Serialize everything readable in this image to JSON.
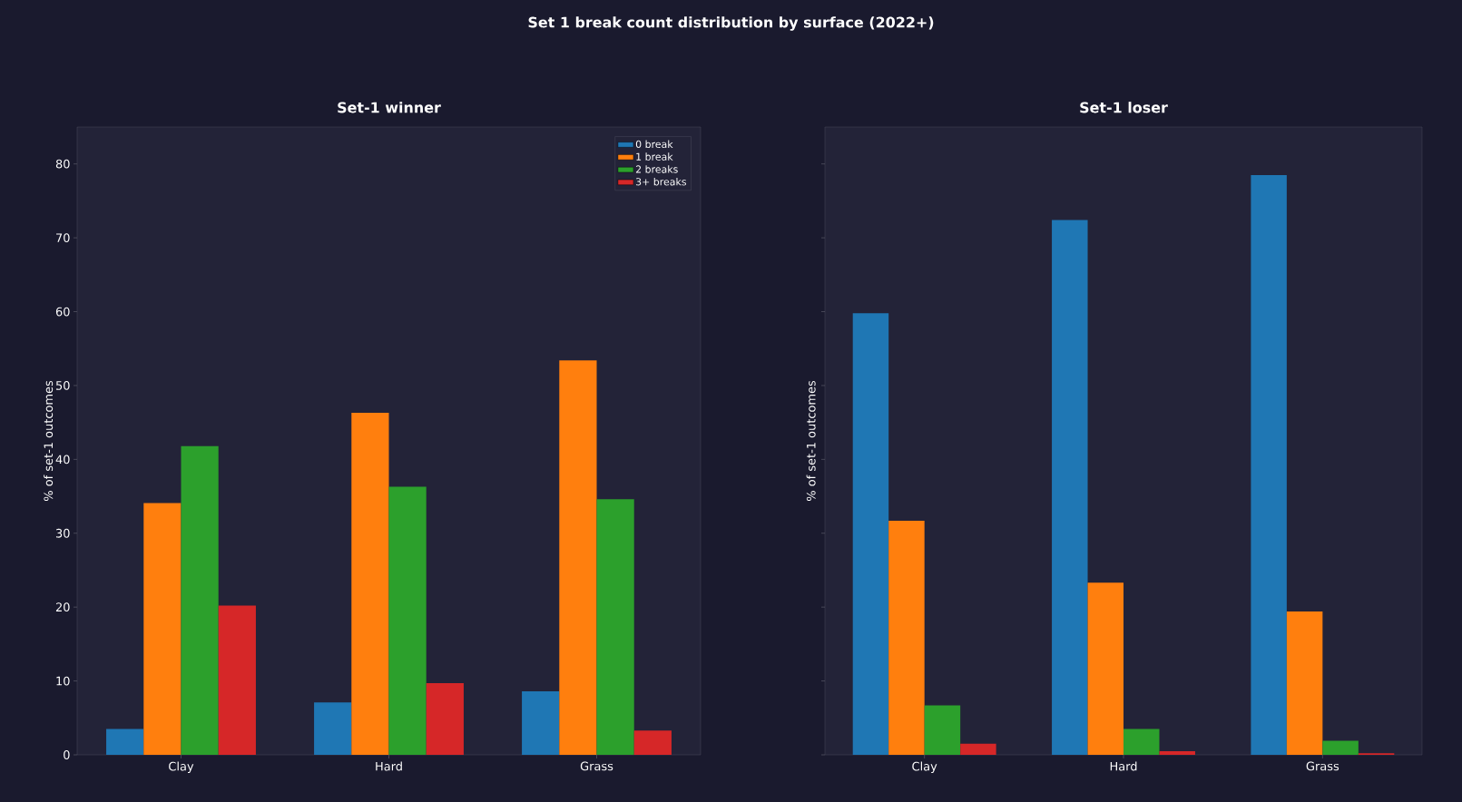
{
  "chart_data": [
    {
      "type": "bar",
      "title": "Set-1 winner",
      "annotations": [
        "Set 1 break count distribution by surface (2022+)"
      ],
      "ylabel": "% of set-1 outcomes",
      "categories": [
        "Clay",
        "Hard",
        "Grass"
      ],
      "series": [
        {
          "name": "0 break",
          "color": "#1f77b4",
          "values": [
            3.5,
            7.1,
            8.6
          ]
        },
        {
          "name": "1 break",
          "color": "#ff7f0e",
          "values": [
            34.1,
            46.3,
            53.4
          ]
        },
        {
          "name": "2 breaks",
          "color": "#2ca02c",
          "values": [
            41.8,
            36.3,
            34.6
          ]
        },
        {
          "name": "3+ breaks",
          "color": "#d62728",
          "values": [
            20.2,
            9.7,
            3.3
          ]
        }
      ],
      "ylim": [
        0,
        85
      ],
      "yticks": [
        0,
        10,
        20,
        30,
        40,
        50,
        60,
        70,
        80
      ],
      "legend": "top right"
    },
    {
      "type": "bar",
      "title": "Set-1 loser",
      "ylabel": "% of set-1 outcomes",
      "categories": [
        "Clay",
        "Hard",
        "Grass"
      ],
      "series": [
        {
          "color": "#1f77b4",
          "values": [
            59.8,
            72.4,
            78.5
          ]
        },
        {
          "color": "#ff7f0e",
          "values": [
            31.7,
            23.3,
            19.4
          ]
        },
        {
          "color": "#2ca02c",
          "values": [
            6.7,
            3.5,
            1.9
          ]
        },
        {
          "color": "#d62728",
          "values": [
            1.5,
            0.5,
            0.2
          ]
        }
      ],
      "ylim": [
        0,
        85
      ],
      "yticks": [
        0,
        10,
        20,
        30,
        40,
        50,
        60,
        70,
        80
      ],
      "tick_labels": "x"
    }
  ]
}
